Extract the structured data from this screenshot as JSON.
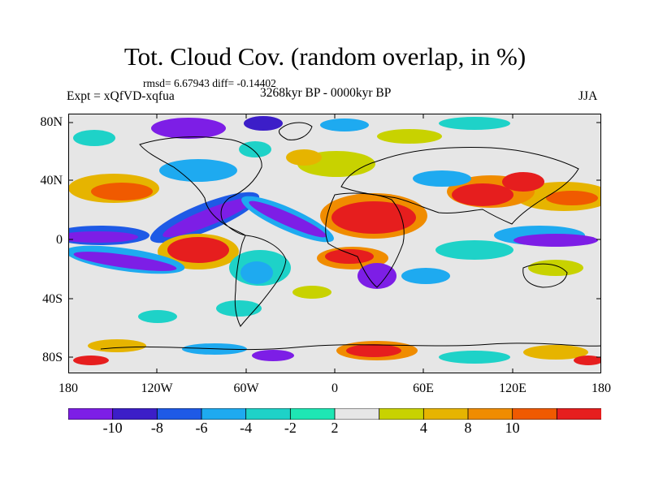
{
  "title": "Tot. Cloud Cov. (random overlap, in %)",
  "stats_text": "rmsd= 6.67943 diff= -0.14402",
  "experiment_label": "Expt = xQfVD-xqfua",
  "period_label": "3268kyr BP - 0000kyr BP",
  "season_label": "JJA",
  "lat_ticks": [
    "80N",
    "40N",
    "0",
    "40S",
    "80S"
  ],
  "lon_ticks": [
    "180",
    "120W",
    "60W",
    "0",
    "60E",
    "120E",
    "180"
  ],
  "colorbar": {
    "colors": [
      "#7d1ee6",
      "#3c1ec8",
      "#1e5ae6",
      "#1eaaf0",
      "#1ed2c8",
      "#1ee6b4",
      "#e6e6e6",
      "#c8d200",
      "#e6b400",
      "#f08c00",
      "#f05a00",
      "#e61e1e"
    ],
    "labels": [
      "-10",
      "-8",
      "-6",
      "-4",
      "-2",
      "2",
      "4",
      "8",
      "10"
    ]
  }
}
